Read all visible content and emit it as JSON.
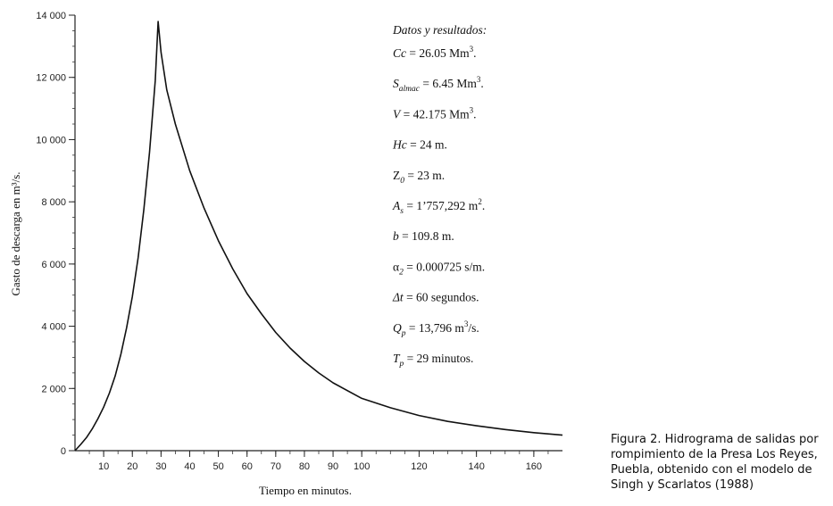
{
  "chart_data": {
    "type": "line",
    "xlabel": "Tiempo en minutos.",
    "ylabel": "Gasto de descarga en m³/s.",
    "xlim": [
      0,
      170
    ],
    "ylim": [
      0,
      14000
    ],
    "x_ticks": [
      10,
      20,
      30,
      40,
      50,
      60,
      70,
      80,
      90,
      100,
      120,
      140,
      160
    ],
    "y_ticks": [
      0,
      2000,
      4000,
      6000,
      8000,
      10000,
      12000,
      14000
    ],
    "y_tick_labels": [
      "0",
      "2 000",
      "4 000",
      "6 000",
      "8 000",
      "10 000",
      "12 000",
      "14 000"
    ],
    "grid": false,
    "series": [
      {
        "x": [
          0,
          2,
          4,
          6,
          8,
          10,
          12,
          14,
          16,
          18,
          20,
          22,
          24,
          26,
          28,
          29,
          30,
          32,
          35,
          40,
          45,
          50,
          55,
          60,
          65,
          70,
          75,
          80,
          85,
          90,
          100,
          110,
          120,
          130,
          140,
          150,
          160,
          170
        ],
        "y": [
          0,
          200,
          420,
          700,
          1030,
          1400,
          1850,
          2400,
          3100,
          3950,
          4950,
          6200,
          7750,
          9600,
          11900,
          13796,
          12800,
          11600,
          10500,
          9000,
          7800,
          6750,
          5850,
          5050,
          4400,
          3800,
          3300,
          2870,
          2500,
          2180,
          1680,
          1380,
          1130,
          940,
          800,
          680,
          580,
          500
        ]
      }
    ]
  },
  "annotations": {
    "heading": "Datos y resultados:",
    "lines": [
      {
        "sym": "Cc",
        "sub": "",
        "sym_italic": true,
        "value": " = 26.05 Mm",
        "sup": "3",
        "tail": "."
      },
      {
        "sym": "S",
        "sub": "almac",
        "sym_italic": true,
        "value": " = 6.45 Mm",
        "sup": "3",
        "tail": "."
      },
      {
        "sym": "V",
        "sub": "",
        "sym_italic": true,
        "value": " = 42.175 Mm",
        "sup": "3",
        "tail": "."
      },
      {
        "sym": "Hc",
        "sub": "",
        "sym_italic": true,
        "value": " = 24 m.",
        "sup": "",
        "tail": ""
      },
      {
        "sym": "Z",
        "sub": "0",
        "sym_italic": false,
        "value": " = 23 m.",
        "sup": "",
        "tail": ""
      },
      {
        "sym": "A",
        "sub": "s",
        "sym_italic": true,
        "value": " = 1’757,292 m",
        "sup": "2",
        "tail": "."
      },
      {
        "sym": "b",
        "sub": "",
        "sym_italic": true,
        "value": " = 109.8 m.",
        "sup": "",
        "tail": ""
      },
      {
        "sym": "α",
        "sub": "2",
        "sym_italic": false,
        "value": " = 0.000725 s/m.",
        "sup": "",
        "tail": ""
      },
      {
        "sym": "Δt",
        "sub": "",
        "sym_italic": true,
        "value": " = 60 segundos.",
        "sup": "",
        "tail": ""
      },
      {
        "sym": "Q",
        "sub": "p",
        "sym_italic": true,
        "value": " = 13,796 m",
        "sup": "3",
        "tail": "/s."
      },
      {
        "sym": "T",
        "sub": "p",
        "sym_italic": true,
        "value": " = 29 minutos.",
        "sup": "",
        "tail": ""
      }
    ]
  },
  "caption": {
    "text": "Figura 2. Hidrograma de salidas por rompimiento de la Presa Los Reyes, Puebla, obtenido con el modelo de Singh y Scarlatos (1988)"
  }
}
